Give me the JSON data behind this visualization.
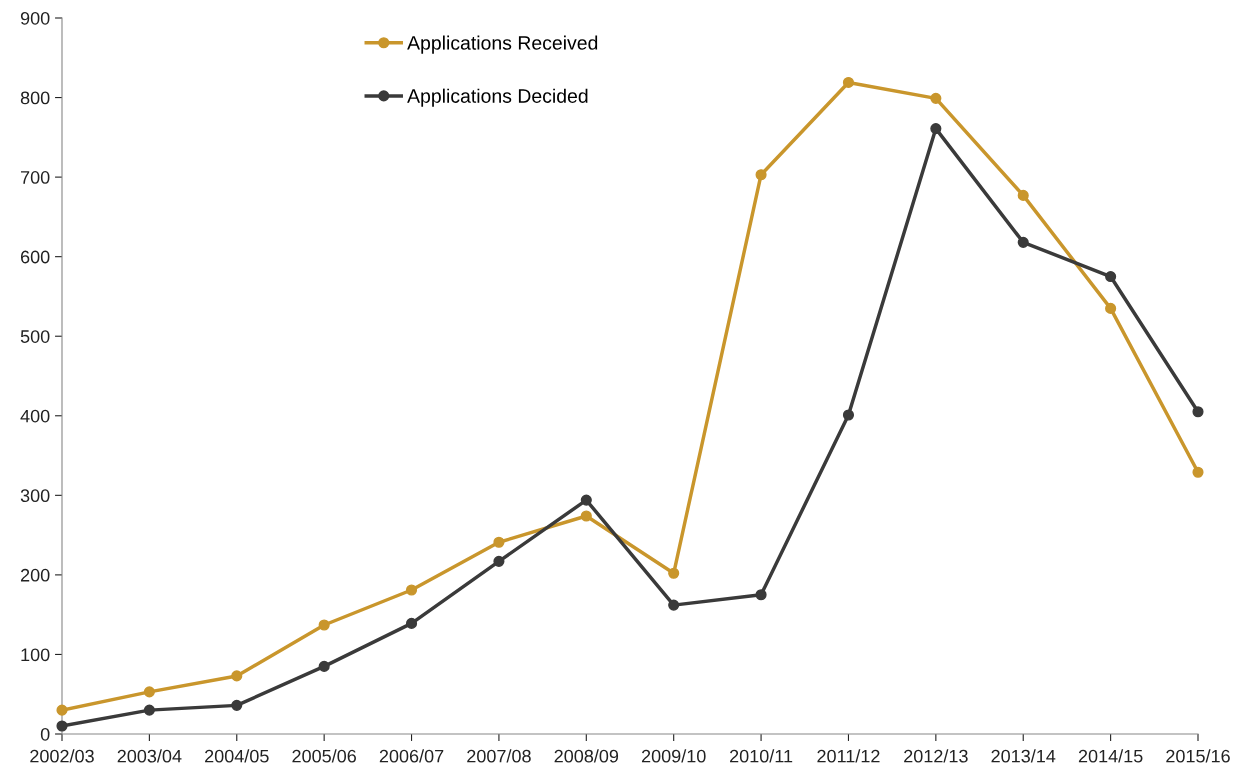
{
  "chart_data": {
    "type": "line",
    "categories": [
      "2002/03",
      "2003/04",
      "2004/05",
      "2005/06",
      "2006/07",
      "2007/08",
      "2008/09",
      "2009/10",
      "2010/11",
      "2011/12",
      "2012/13",
      "2013/14",
      "2014/15",
      "2015/16"
    ],
    "series": [
      {
        "name": "Applications Received",
        "color": "#c9962c",
        "values": [
          30,
          53,
          73,
          137,
          181,
          241,
          274,
          202,
          703,
          819,
          799,
          677,
          535,
          329
        ]
      },
      {
        "name": "Applications Decided",
        "color": "#3a3a3a",
        "values": [
          10,
          30,
          36,
          85,
          139,
          217,
          294,
          162,
          175,
          401,
          761,
          618,
          575,
          405
        ]
      }
    ],
    "ylim": [
      0,
      900
    ],
    "yticks": [
      0,
      100,
      200,
      300,
      400,
      500,
      600,
      700,
      800,
      900
    ],
    "grid": false,
    "legend": "top",
    "marker": "circle",
    "line_style": "solid"
  }
}
